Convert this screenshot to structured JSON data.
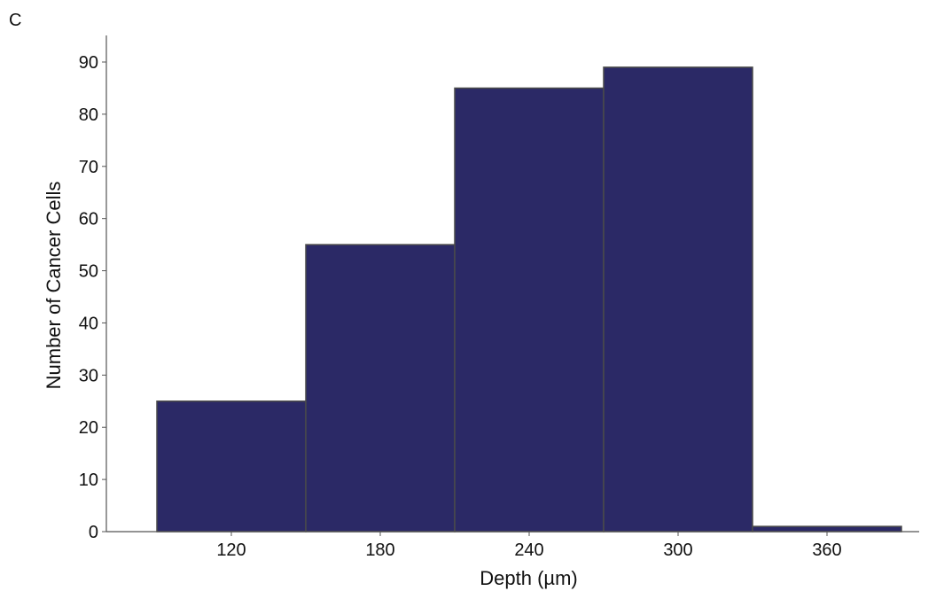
{
  "panel_label": "C",
  "colors": {
    "bar_fill": "#2B2966",
    "bar_edge": "#4A4A4A",
    "axis": "#555555"
  },
  "chart_data": {
    "type": "bar",
    "title": "",
    "xlabel": "Depth (µm)",
    "ylabel": "Number of Cancer Cells",
    "categories": [
      "120",
      "180",
      "240",
      "300",
      "360"
    ],
    "values": [
      25,
      55,
      85,
      89,
      1
    ],
    "ylim": [
      0,
      95
    ],
    "yticks": [
      0,
      10,
      20,
      30,
      40,
      50,
      60,
      70,
      80,
      90
    ],
    "grid": false,
    "legend": "none"
  }
}
